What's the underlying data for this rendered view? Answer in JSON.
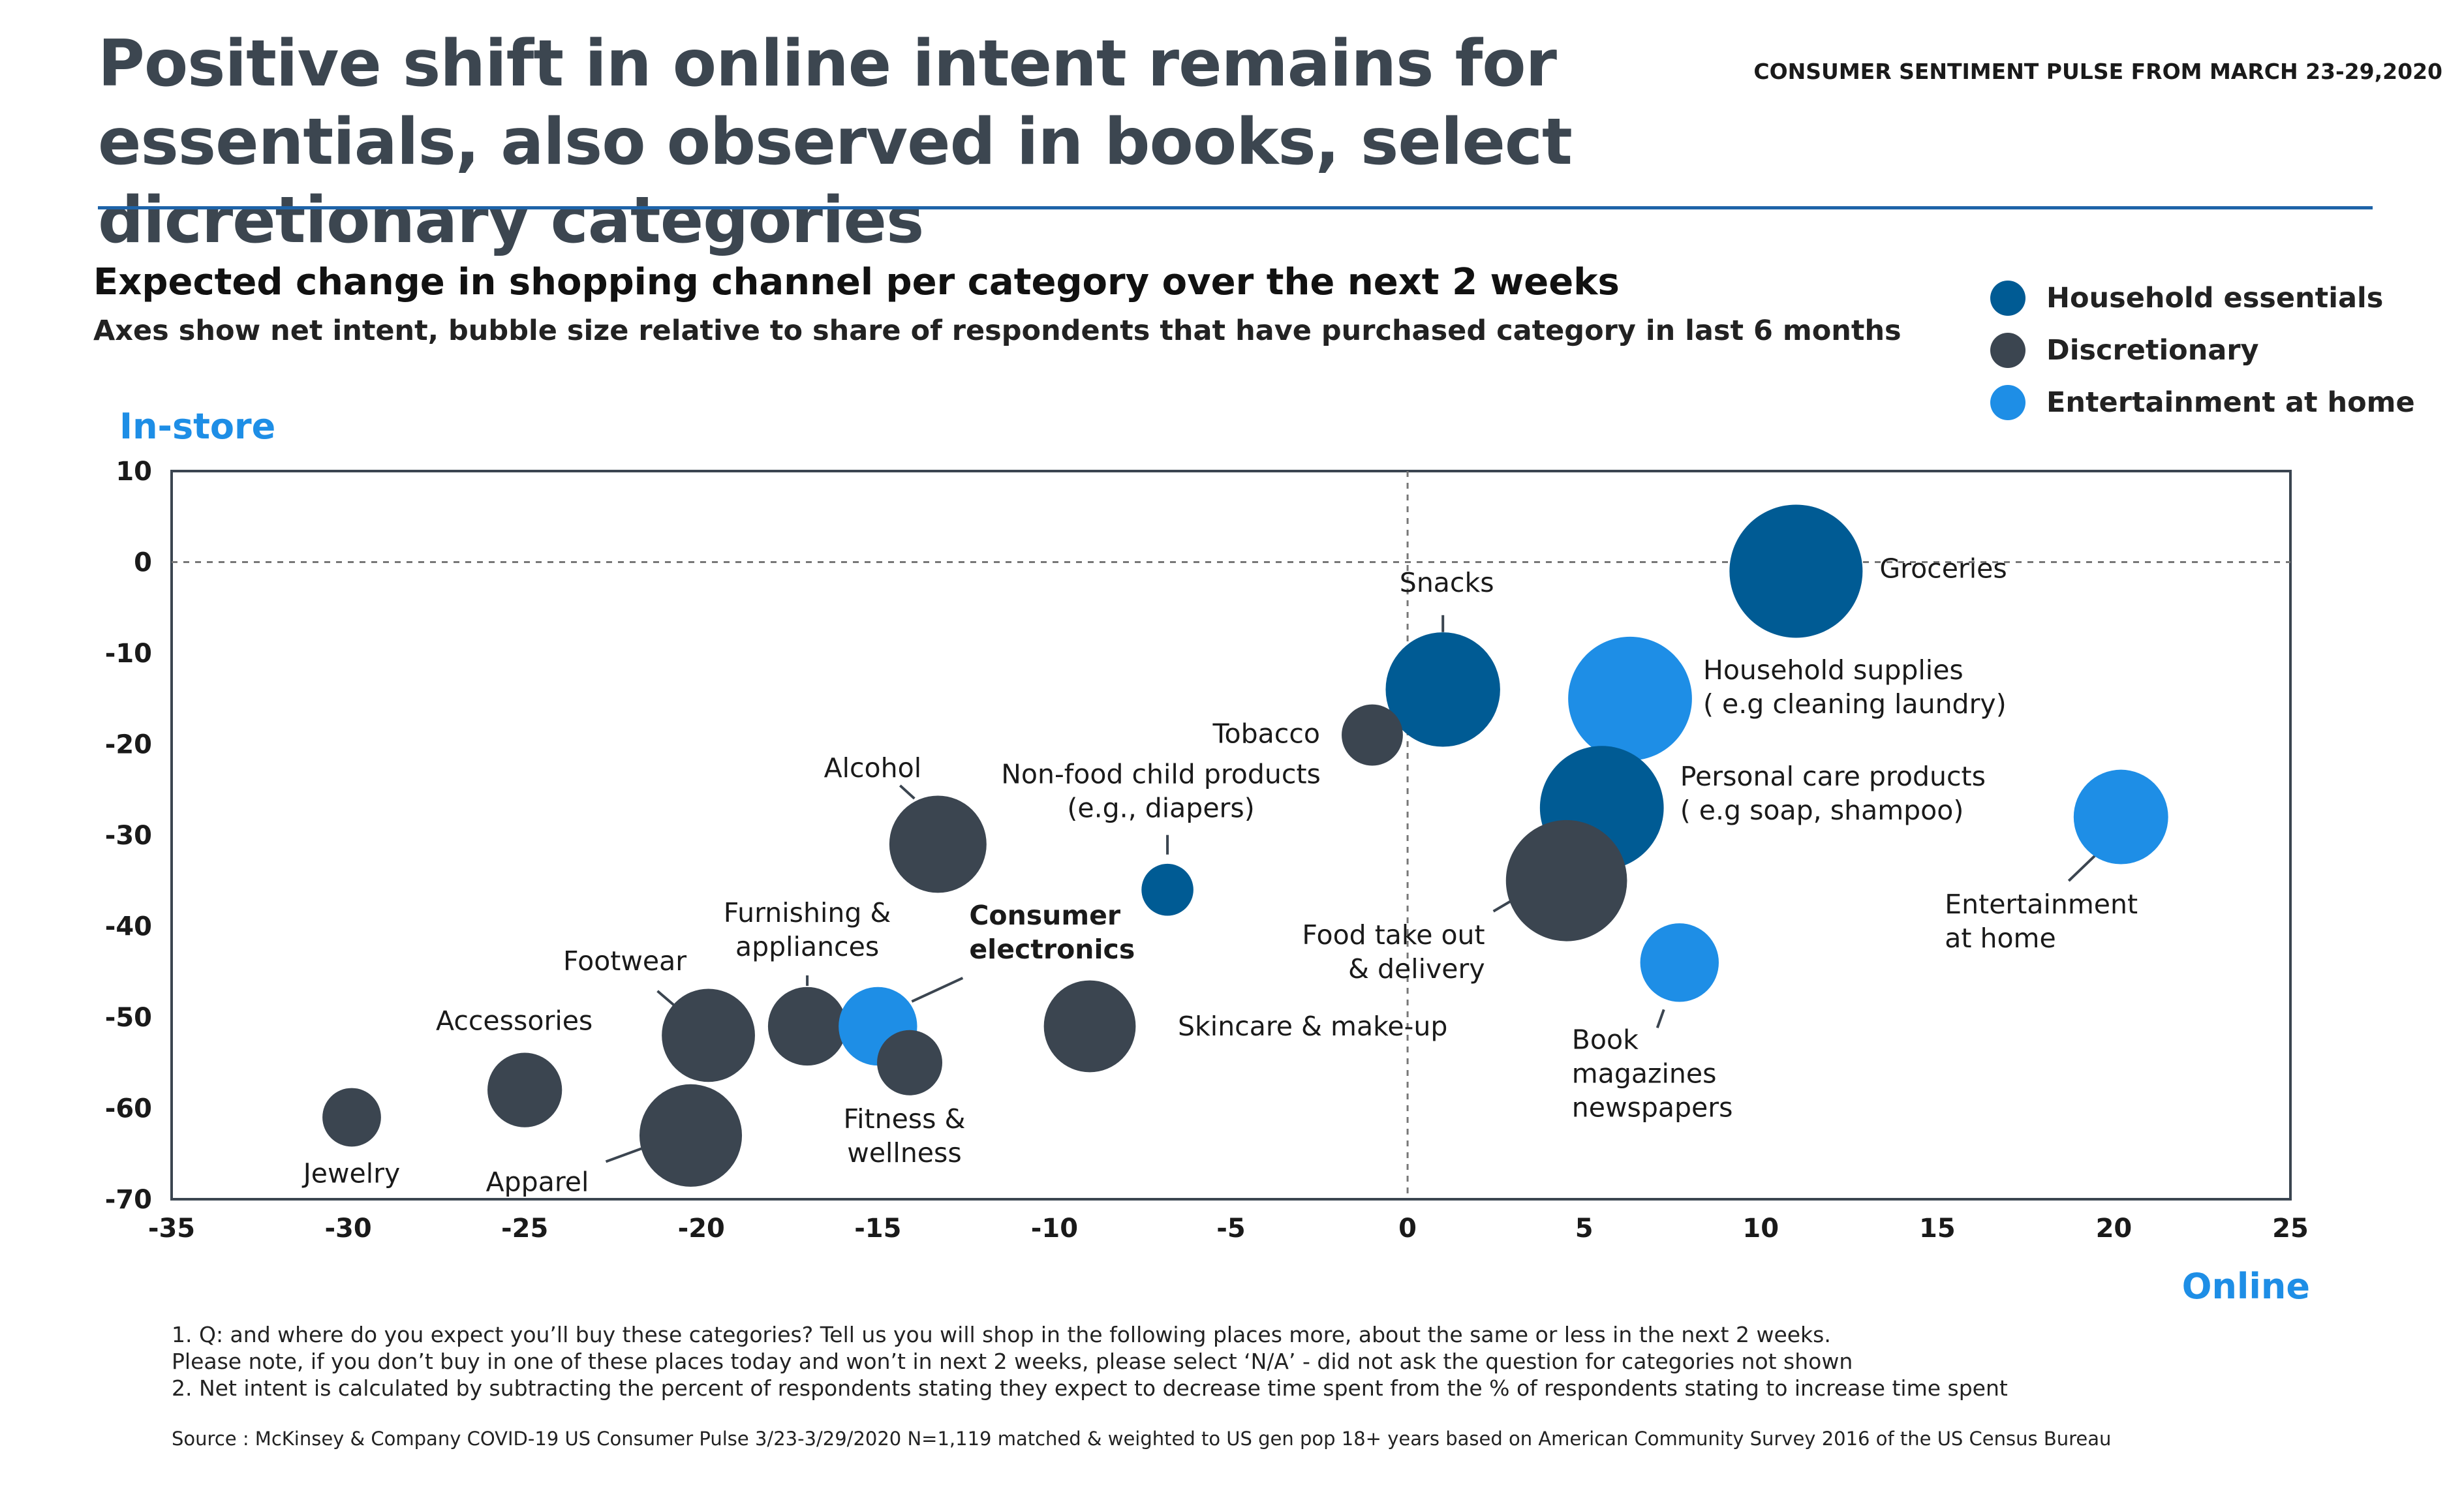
{
  "header": {
    "title": "Positive shift in online intent remains for essentials, also observed in books, select dicretionary categories",
    "pulse_label": "CONSUMER SENTIMENT PULSE FROM MARCH 23-29,2020"
  },
  "colors": {
    "household": "#005b94",
    "discretionary": "#3b4550",
    "entertainment": "#1e8ee6",
    "axis_label": "#1e8ee6",
    "rule": "#1e63a8"
  },
  "legend": [
    {
      "key": "household",
      "label": "Household essentials"
    },
    {
      "key": "discretionary",
      "label": "Discretionary"
    },
    {
      "key": "entertainment",
      "label": "Entertainment at home"
    }
  ],
  "chart_data": {
    "type": "scatter",
    "title": "Expected change in shopping channel per category over the next 2 weeks",
    "subtitle": "Axes show net intent, bubble size relative to share of respondents that have purchased category in last 6 months",
    "ylabel": "In-store",
    "xlabel": "Online",
    "xlim": [
      -35,
      25
    ],
    "ylim": [
      -70,
      10
    ],
    "xticks": [
      -35,
      -30,
      -25,
      -20,
      -15,
      -10,
      -5,
      0,
      5,
      10,
      15,
      20,
      25
    ],
    "yticks": [
      10,
      0,
      -10,
      -20,
      -30,
      -40,
      -50,
      -60,
      -70
    ],
    "reference_lines": {
      "x": 0,
      "y": 0
    },
    "points": [
      {
        "name": "Groceries",
        "label_lines": [
          "Groceries"
        ],
        "group": "household",
        "x": 11,
        "y": -1,
        "size": 1.0
      },
      {
        "name": "Snacks",
        "label_lines": [
          "Snacks"
        ],
        "group": "household",
        "x": 1,
        "y": -14,
        "size": 0.86
      },
      {
        "name": "Household supplies",
        "label_lines": [
          "Household supplies",
          "( e.g cleaning laundry)"
        ],
        "group": "entertainment",
        "x": 6.3,
        "y": -15,
        "size": 0.93
      },
      {
        "name": "Tobacco",
        "label_lines": [
          "Tobacco"
        ],
        "group": "discretionary",
        "x": -1,
        "y": -19,
        "size": 0.46
      },
      {
        "name": "Personal care products",
        "label_lines": [
          "Personal care products",
          "( e.g soap, shampoo)"
        ],
        "group": "household",
        "x": 5.5,
        "y": -27,
        "size": 0.93
      },
      {
        "name": "Entertainment at home",
        "label_lines": [
          "Entertainment",
          "at home"
        ],
        "group": "entertainment",
        "x": 20.2,
        "y": -28,
        "size": 0.71
      },
      {
        "name": "Alcohol",
        "label_lines": [
          "Alcohol"
        ],
        "group": "discretionary",
        "x": -13.3,
        "y": -31,
        "size": 0.73
      },
      {
        "name": "Non-food child products",
        "label_lines": [
          "Non-food child products",
          "(e.g., diapers)"
        ],
        "group": "household",
        "x": -6.8,
        "y": -36,
        "size": 0.39
      },
      {
        "name": "Food take out & delivery",
        "label_lines": [
          "Food take out",
          "& delivery"
        ],
        "group": "discretionary",
        "x": 4.5,
        "y": -35,
        "size": 0.91
      },
      {
        "name": "Book magazines newspapers",
        "label_lines": [
          "Book",
          "magazines",
          "newspapers"
        ],
        "group": "entertainment",
        "x": 7.7,
        "y": -44,
        "size": 0.59
      },
      {
        "name": "Furnishing & appliances",
        "label_lines": [
          "Furnishing &",
          "appliances"
        ],
        "group": "discretionary",
        "x": -17,
        "y": -51,
        "size": 0.59
      },
      {
        "name": "Consumer electronics",
        "label_lines": [
          "Consumer",
          "electronics"
        ],
        "group": "entertainment",
        "x": -15,
        "y": -51,
        "size": 0.59
      },
      {
        "name": "Skincare & make-up",
        "label_lines": [
          "Skincare & make-up"
        ],
        "group": "discretionary",
        "x": -9,
        "y": -51,
        "size": 0.69
      },
      {
        "name": "Footwear",
        "label_lines": [
          "Footwear"
        ],
        "group": "discretionary",
        "x": -19.8,
        "y": -52,
        "size": 0.7
      },
      {
        "name": "Fitness & wellness",
        "label_lines": [
          "Fitness &",
          "wellness"
        ],
        "group": "discretionary",
        "x": -14.1,
        "y": -55,
        "size": 0.49
      },
      {
        "name": "Accessories",
        "label_lines": [
          "Accessories"
        ],
        "group": "discretionary",
        "x": -25,
        "y": -58,
        "size": 0.56
      },
      {
        "name": "Jewelry",
        "label_lines": [
          "Jewelry"
        ],
        "group": "discretionary",
        "x": -29.9,
        "y": -61,
        "size": 0.44
      },
      {
        "name": "Apparel",
        "label_lines": [
          "Apparel"
        ],
        "group": "discretionary",
        "x": -20.3,
        "y": -63,
        "size": 0.77
      }
    ]
  },
  "notes": {
    "note1": "1. Q: and where do you expect you’ll buy these categories? Tell us you will shop in the following places more, about the same or less in the next 2 weeks.",
    "note2": "Please note, if you don’t buy in one of these places today and won’t in next 2 weeks, please select ‘N/A’ - did not ask the question for categories not shown",
    "note3": "2. Net intent is calculated by subtracting the percent of respondents stating they expect to decrease time spent from the % of respondents stating to increase time spent",
    "source": "Source : McKinsey & Company COVID-19 US Consumer Pulse 3/23-3/29/2020 N=1,119 matched & weighted to US gen pop 18+ years based on American Community Survey 2016 of the US Census Bureau"
  }
}
